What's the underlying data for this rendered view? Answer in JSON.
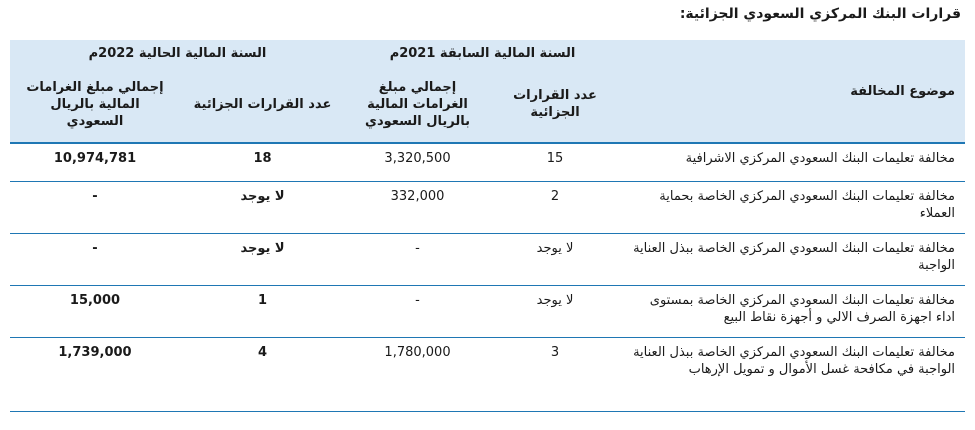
{
  "title": "قرارات  البنك المركزي السعودي الجزائية:",
  "header": {
    "topic": "موضوع المخالفة",
    "prev_year": "السنة المالية السابقة  2021م",
    "curr_year": "السنة المالية الحالية 2022م",
    "count_label": "عدد القرارات الجزائية",
    "amount_label": "إجمالي مبلغ الغرامات المالية بالريال السعودي"
  },
  "rows": [
    {
      "topic": "مخالفة تعليمات البنك السعودي المركزي الاشرافية",
      "prev_count": "15",
      "prev_amount": "3,320,500",
      "curr_count": "18",
      "curr_amount": "10,974,781"
    },
    {
      "topic": "مخالفة تعليمات البنك السعودي المركزي الخاصة بحماية العملاء",
      "prev_count": "2",
      "prev_amount": "332,000",
      "curr_count": "لا يوجد",
      "curr_amount": "-"
    },
    {
      "topic": "مخالفة تعليمات البنك السعودي المركزي الخاصة ببذل العناية الواجبة",
      "prev_count": "لا يوجد",
      "prev_amount": "-",
      "curr_count": "لا يوجد",
      "curr_amount": "-"
    },
    {
      "topic": "مخالفة تعليمات البنك السعودي المركزي الخاصة بمستوى اداء اجهزة الصرف الالي و أجهزة نقاط البيع",
      "prev_count": "لا يوجد",
      "prev_amount": "-",
      "curr_count": "1",
      "curr_amount": "15,000"
    },
    {
      "topic": "مخالفة تعليمات البنك السعودي المركزي الخاصة ببذل العناية الواجبة في مكافحة غسل الأموال و تمويل الإرهاب",
      "prev_count": "3",
      "prev_amount": "1,780,000",
      "curr_count": "4",
      "curr_amount": "1,739,000"
    }
  ]
}
